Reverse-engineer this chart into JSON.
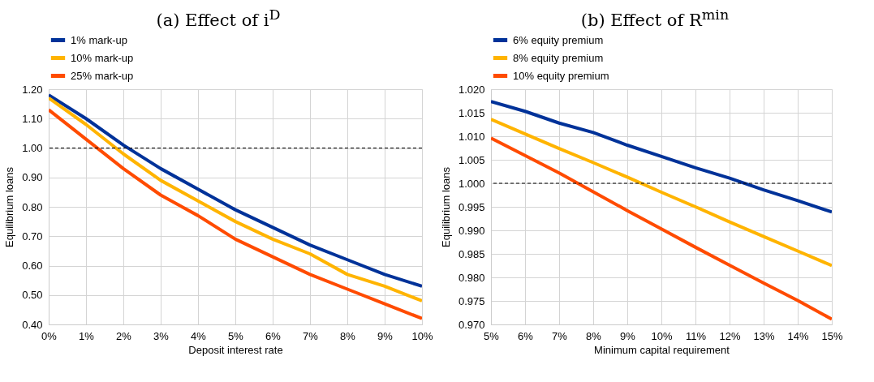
{
  "chart_data": [
    {
      "type": "line",
      "title": "(a) Effect of i$^{D}$",
      "xlabel": "Deposit interest rate",
      "ylabel": "Equilibrium loans",
      "x": [
        0,
        1,
        2,
        3,
        4,
        5,
        6,
        7,
        8,
        9,
        10
      ],
      "series": [
        {
          "name": "1% mark-up",
          "color": "#003299",
          "values": [
            1.18,
            1.1,
            1.01,
            0.93,
            0.86,
            0.79,
            0.73,
            0.67,
            0.62,
            0.57,
            0.53
          ]
        },
        {
          "name": "10% mark-up",
          "color": "#ffb400",
          "values": [
            1.17,
            1.08,
            0.98,
            0.89,
            0.82,
            0.75,
            0.69,
            0.64,
            0.57,
            0.53,
            0.48
          ]
        },
        {
          "name": "25% mark-up",
          "color": "#ff4b00",
          "values": [
            1.13,
            1.03,
            0.93,
            0.84,
            0.77,
            0.69,
            0.63,
            0.57,
            0.52,
            0.47,
            0.42
          ]
        }
      ],
      "xlim": [
        0,
        10
      ],
      "xticks": [
        {
          "value": 0,
          "label": "0%"
        },
        {
          "value": 1,
          "label": "1%"
        },
        {
          "value": 2,
          "label": "2%"
        },
        {
          "value": 3,
          "label": "3%"
        },
        {
          "value": 4,
          "label": "4%"
        },
        {
          "value": 5,
          "label": "5%"
        },
        {
          "value": 6,
          "label": "6%"
        },
        {
          "value": 7,
          "label": "7%"
        },
        {
          "value": 8,
          "label": "8%"
        },
        {
          "value": 9,
          "label": "9%"
        },
        {
          "value": 10,
          "label": "10%"
        }
      ],
      "ylim": [
        0.4,
        1.2
      ],
      "yticks": [
        {
          "value": 0.4,
          "label": "0.40"
        },
        {
          "value": 0.5,
          "label": "0.50"
        },
        {
          "value": 0.6,
          "label": "0.60"
        },
        {
          "value": 0.7,
          "label": "0.70"
        },
        {
          "value": 0.8,
          "label": "0.80"
        },
        {
          "value": 0.9,
          "label": "0.90"
        },
        {
          "value": 1.0,
          "label": "1.00"
        },
        {
          "value": 1.1,
          "label": "1.10"
        },
        {
          "value": 1.2,
          "label": "1.20"
        }
      ],
      "ref_lines": [
        {
          "axis": "y",
          "value": 1.0,
          "color": "#000000",
          "line_style": "dashed"
        }
      ],
      "grid": true,
      "legend": "top left",
      "marker": "none",
      "line_style": "solid"
    },
    {
      "type": "line",
      "title": "(b) Effect of R$^{min}$",
      "xlabel": "Minimum capital requirement",
      "ylabel": "Equilibrium loans",
      "x": [
        5,
        6,
        7,
        8,
        9,
        10,
        11,
        12,
        13,
        14,
        15
      ],
      "series": [
        {
          "name": "6% equity premium",
          "color": "#003299",
          "values": [
            1.0174,
            1.0153,
            1.0128,
            1.0108,
            1.0081,
            1.0057,
            1.0033,
            1.0011,
            0.9986,
            0.9963,
            0.9939
          ]
        },
        {
          "name": "8% equity premium",
          "color": "#ffb400",
          "values": [
            1.0136,
            1.0105,
            1.0074,
            1.0044,
            1.0013,
            0.9981,
            0.995,
            0.9918,
            0.9887,
            0.9856,
            0.9825
          ]
        },
        {
          "name": "10% equity premium",
          "color": "#ff4b00",
          "values": [
            1.0096,
            1.0059,
            1.0022,
            0.9982,
            0.9942,
            0.9903,
            0.9864,
            0.9826,
            0.9788,
            0.9751,
            0.9711
          ]
        }
      ],
      "xlim": [
        5,
        15
      ],
      "xticks": [
        {
          "value": 5,
          "label": "5%"
        },
        {
          "value": 6,
          "label": "6%"
        },
        {
          "value": 7,
          "label": "7%"
        },
        {
          "value": 8,
          "label": "8%"
        },
        {
          "value": 9,
          "label": "9%"
        },
        {
          "value": 10,
          "label": "10%"
        },
        {
          "value": 11,
          "label": "11%"
        },
        {
          "value": 12,
          "label": "12%"
        },
        {
          "value": 13,
          "label": "13%"
        },
        {
          "value": 14,
          "label": "14%"
        },
        {
          "value": 15,
          "label": "15%"
        }
      ],
      "ylim": [
        0.97,
        1.02
      ],
      "yticks": [
        {
          "value": 0.97,
          "label": "0.970"
        },
        {
          "value": 0.975,
          "label": "0.975"
        },
        {
          "value": 0.98,
          "label": "0.980"
        },
        {
          "value": 0.985,
          "label": "0.985"
        },
        {
          "value": 0.99,
          "label": "0.990"
        },
        {
          "value": 0.995,
          "label": "0.995"
        },
        {
          "value": 1.0,
          "label": "1.000"
        },
        {
          "value": 1.005,
          "label": "1.005"
        },
        {
          "value": 1.01,
          "label": "1.010"
        },
        {
          "value": 1.015,
          "label": "1.015"
        },
        {
          "value": 1.02,
          "label": "1.020"
        }
      ],
      "ref_lines": [
        {
          "axis": "y",
          "value": 1.0,
          "color": "#000000",
          "line_style": "dashed"
        }
      ],
      "grid": true,
      "legend": "top left",
      "marker": "none",
      "line_style": "solid"
    }
  ]
}
